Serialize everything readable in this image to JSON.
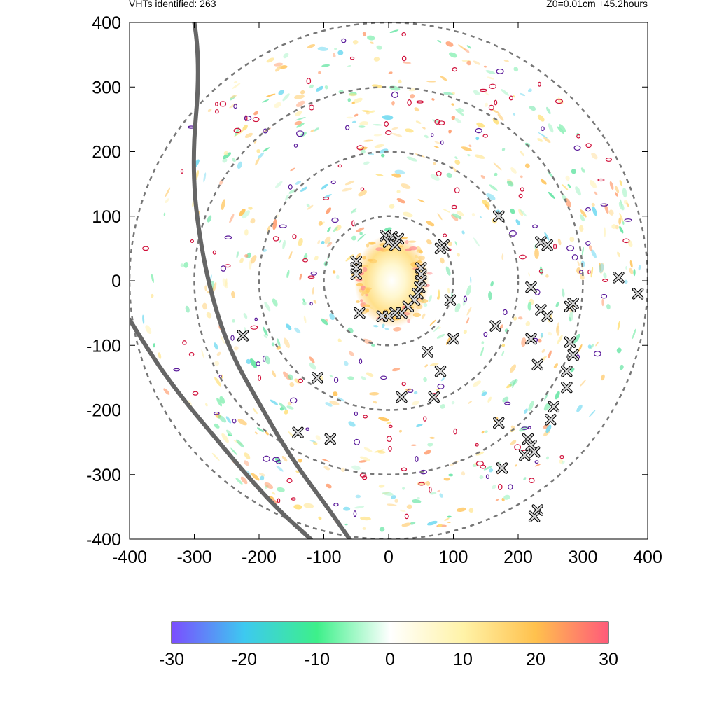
{
  "header": {
    "vht_count_label": "VHTs identified: 263",
    "run_info_label": "Z0=0.01cm  +45.2hours"
  },
  "chart_data": {
    "type": "heatmap",
    "title": "",
    "xlabel": "",
    "ylabel": "",
    "xlim": [
      -400,
      400
    ],
    "ylim": [
      -400,
      400
    ],
    "x_ticks": [
      -400,
      -300,
      -200,
      -100,
      0,
      100,
      200,
      300,
      400
    ],
    "y_ticks": [
      -400,
      -300,
      -200,
      -100,
      0,
      100,
      200,
      300,
      400
    ],
    "grid": false,
    "range_rings": [
      100,
      200,
      300,
      400
    ],
    "colorbar": {
      "range": [
        -30,
        30
      ],
      "ticks": [
        -30,
        -20,
        -10,
        0,
        10,
        20,
        30
      ],
      "placement": "bottom",
      "colors": [
        "#7b4dff",
        "#3dc9f0",
        "#3df08a",
        "#ffffff",
        "#fff3a8",
        "#ffc14d",
        "#ff5a7a"
      ]
    },
    "vht_markers": [
      [
        -5,
        70
      ],
      [
        5,
        68
      ],
      [
        15,
        65
      ],
      [
        0,
        60
      ],
      [
        10,
        55
      ],
      [
        -50,
        30
      ],
      [
        -50,
        20
      ],
      [
        -50,
        10
      ],
      [
        50,
        20
      ],
      [
        50,
        10
      ],
      [
        50,
        0
      ],
      [
        48,
        -10
      ],
      [
        45,
        -20
      ],
      [
        40,
        -30
      ],
      [
        30,
        -40
      ],
      [
        20,
        -50
      ],
      [
        10,
        -50
      ],
      [
        0,
        -55
      ],
      [
        -10,
        -55
      ],
      [
        -45,
        -50
      ],
      [
        85,
        55
      ],
      [
        80,
        50
      ],
      [
        95,
        -30
      ],
      [
        100,
        -90
      ],
      [
        60,
        -110
      ],
      [
        80,
        -140
      ],
      [
        70,
        -180
      ],
      [
        20,
        -180
      ],
      [
        -110,
        -150
      ],
      [
        -225,
        -85
      ],
      [
        -140,
        -235
      ],
      [
        -90,
        -245
      ],
      [
        165,
        -70
      ],
      [
        170,
        100
      ],
      [
        235,
        60
      ],
      [
        245,
        55
      ],
      [
        220,
        -10
      ],
      [
        235,
        -45
      ],
      [
        245,
        -55
      ],
      [
        280,
        -40
      ],
      [
        285,
        -35
      ],
      [
        220,
        -90
      ],
      [
        230,
        -130
      ],
      [
        280,
        -95
      ],
      [
        285,
        -115
      ],
      [
        275,
        -140
      ],
      [
        275,
        -165
      ],
      [
        255,
        -195
      ],
      [
        250,
        -215
      ],
      [
        170,
        -220
      ],
      [
        215,
        -245
      ],
      [
        220,
        -255
      ],
      [
        225,
        -265
      ],
      [
        210,
        -270
      ],
      [
        175,
        -290
      ],
      [
        230,
        -355
      ],
      [
        225,
        -365
      ],
      [
        355,
        5
      ],
      [
        385,
        -20
      ]
    ],
    "boundary_lines": [
      [
        [
          -300,
          400
        ],
        [
          -290,
          340
        ],
        [
          -305,
          170
        ],
        [
          -285,
          20
        ],
        [
          -250,
          -100
        ],
        [
          -200,
          -190
        ],
        [
          -150,
          -275
        ],
        [
          -95,
          -350
        ],
        [
          -60,
          -400
        ]
      ],
      [
        [
          -400,
          -60
        ],
        [
          -370,
          -110
        ],
        [
          -320,
          -180
        ],
        [
          -270,
          -240
        ],
        [
          -220,
          -300
        ],
        [
          -170,
          -355
        ],
        [
          -120,
          -400
        ]
      ]
    ]
  }
}
